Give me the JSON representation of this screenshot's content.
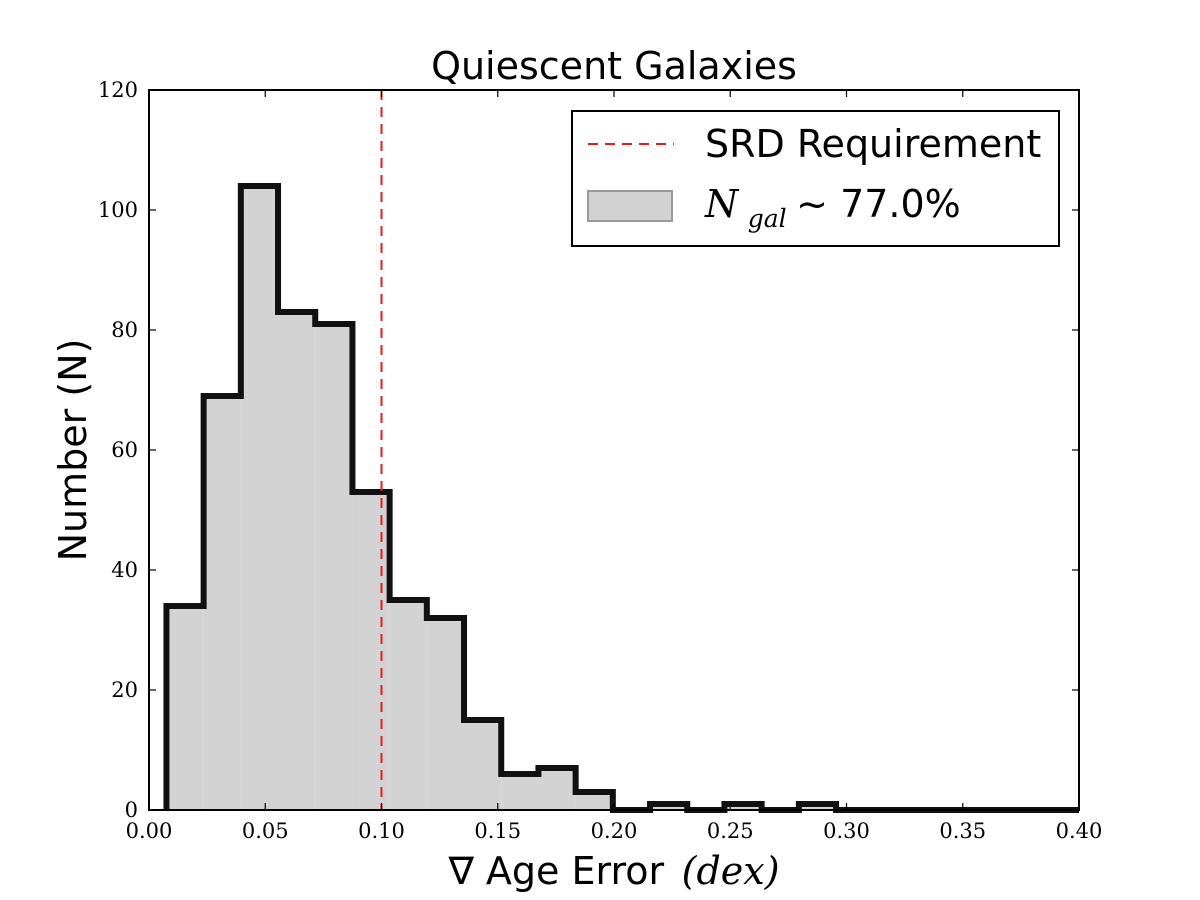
{
  "chart_data": {
    "type": "histogram",
    "title": "Quiescent Galaxies",
    "xlabel": "∇ Age Error (dex)",
    "xlabel_main": "∇ Age Error",
    "xlabel_unit": "(dex)",
    "ylabel": "Number (N)",
    "xlim": [
      0.0,
      0.4
    ],
    "ylim": [
      0,
      120
    ],
    "xticks": [
      "0.00",
      "0.05",
      "0.10",
      "0.15",
      "0.20",
      "0.25",
      "0.30",
      "0.35",
      "0.40"
    ],
    "yticks": [
      "0",
      "20",
      "40",
      "60",
      "80",
      "100",
      "120"
    ],
    "grid": false,
    "bin_edges": [
      0.0075,
      0.0235,
      0.0395,
      0.0555,
      0.0715,
      0.0875,
      0.1035,
      0.1195,
      0.1355,
      0.1515,
      0.1675,
      0.1835,
      0.1995,
      0.2155,
      0.2315,
      0.2475,
      0.2635,
      0.2795,
      0.2955,
      0.3115,
      0.3275,
      0.3435,
      0.3595,
      0.3755,
      0.3915,
      0.4075
    ],
    "counts": [
      34,
      69,
      104,
      83,
      81,
      53,
      35,
      32,
      15,
      6,
      7,
      3,
      0,
      1,
      0,
      1,
      0,
      1,
      0,
      0,
      0,
      0,
      0,
      0,
      0
    ],
    "reference_line": {
      "x": 0.1,
      "style": "dashed",
      "color": "#e41a1c"
    },
    "legend": {
      "placement": "top-right",
      "entries": [
        {
          "label": "SRD Requirement",
          "kind": "line",
          "color": "#e41a1c"
        },
        {
          "label_symbol": "N",
          "label_subscript": "gal",
          "label_rest": " ~ 77.0%",
          "kind": "patch",
          "color": "#d3d3d3"
        }
      ]
    },
    "colors": {
      "fill": "#d3d3d3",
      "edge": "#111111",
      "line": "#e41a1c"
    }
  }
}
